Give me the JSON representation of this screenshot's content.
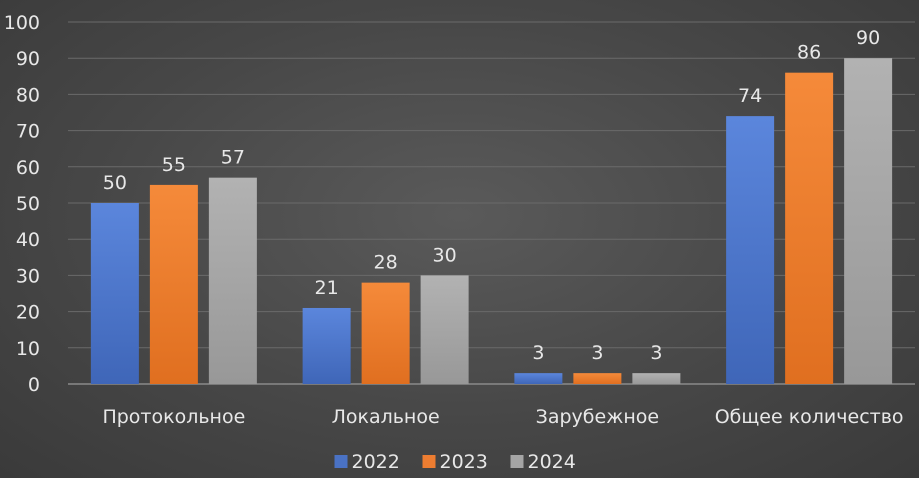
{
  "chart_data": {
    "type": "bar",
    "title": "",
    "xlabel": "",
    "ylabel": "",
    "categories": [
      "Протокольное",
      "Локальное",
      "Зарубежное",
      "Общее количество"
    ],
    "series": [
      {
        "name": "2022",
        "values": [
          50,
          21,
          3,
          74
        ],
        "color": "#4a72c4"
      },
      {
        "name": "2023",
        "values": [
          55,
          28,
          3,
          86
        ],
        "color": "#ed7d31"
      },
      {
        "name": "2024",
        "values": [
          57,
          30,
          3,
          90
        ],
        "color": "#a5a5a5"
      }
    ],
    "ylim": [
      0,
      100
    ],
    "yticks": [
      "0",
      "10",
      "20",
      "30",
      "40",
      "50",
      "60",
      "70",
      "80",
      "90",
      "100"
    ],
    "grid": true,
    "legend_position": "bottom"
  }
}
